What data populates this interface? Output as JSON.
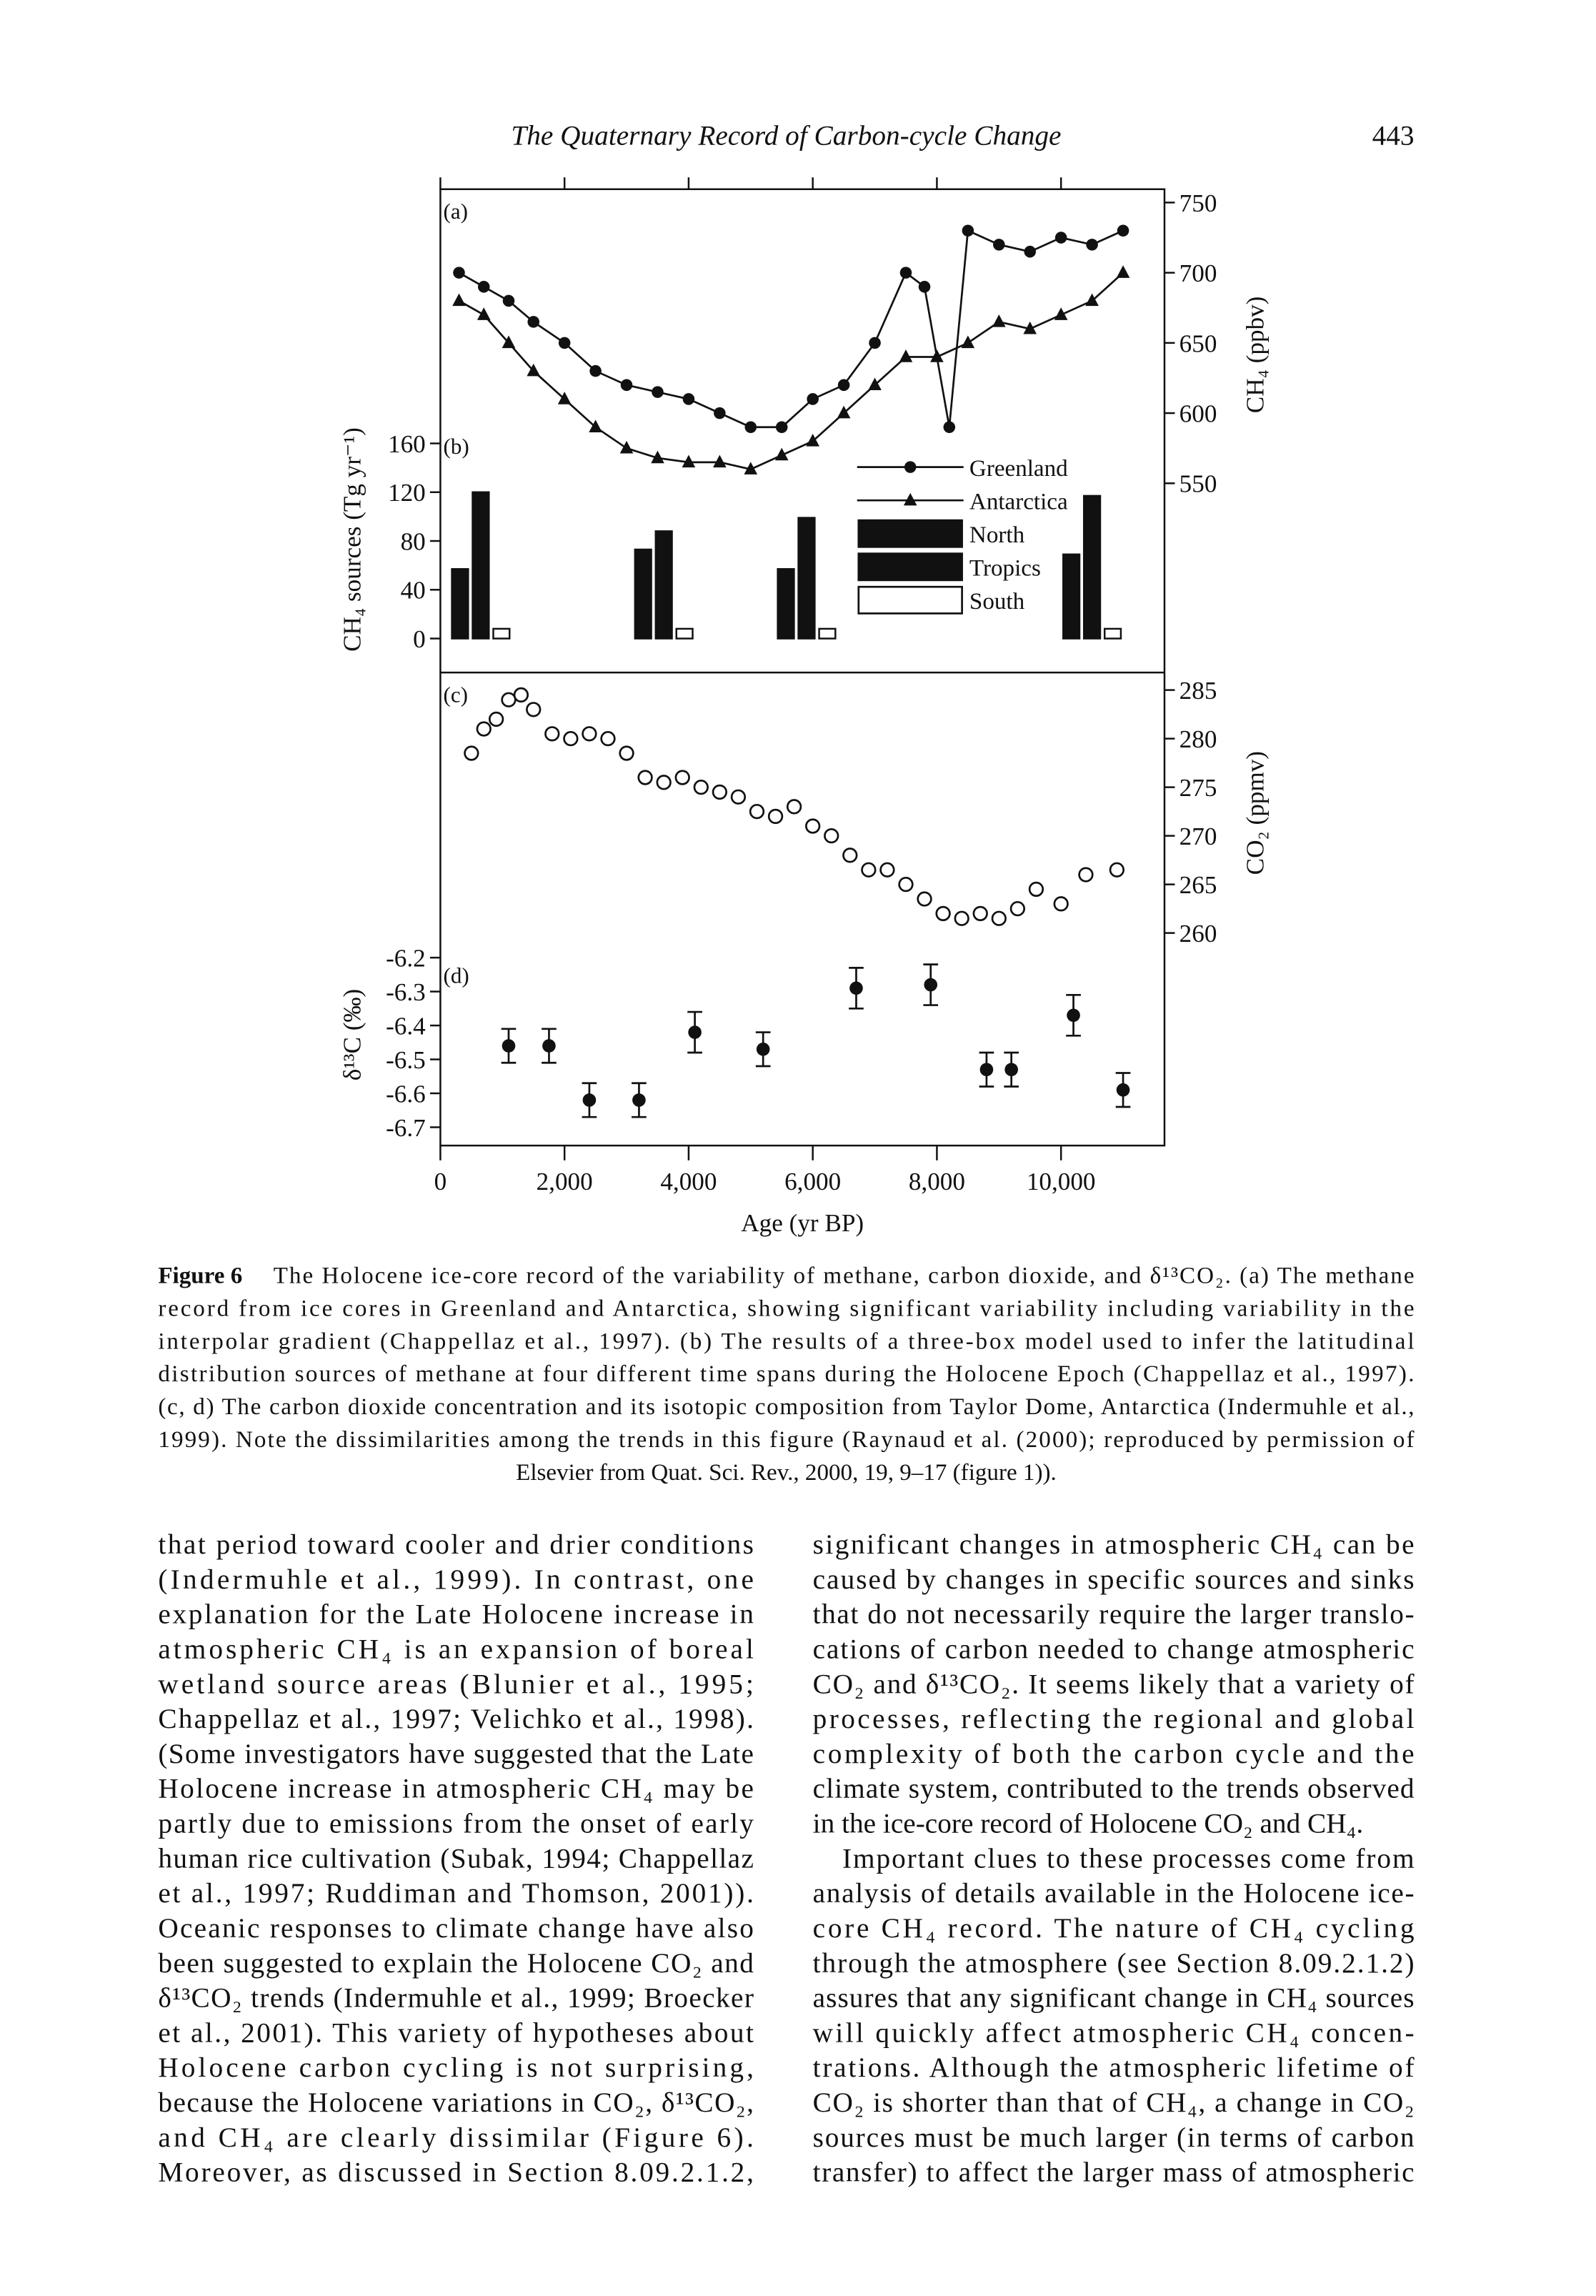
{
  "header": {
    "title": "The Quaternary Record of Carbon-cycle Change",
    "page": "443"
  },
  "chart_data": [
    {
      "type": "line",
      "label": "(a)",
      "y2label": "CH₄ (ppbv)",
      "xlim": [
        0,
        11667
      ],
      "y2lim": [
        546.8,
        759.5
      ],
      "y2ticks": [
        550,
        600,
        650,
        700,
        750
      ],
      "series": [
        {
          "name": "Greenland",
          "color": "#111111",
          "marker": "circle",
          "axis": "y2",
          "x": [
            300,
            700,
            1100,
            1500,
            2000,
            2500,
            3000,
            3500,
            4000,
            4500,
            5000,
            5500,
            6000,
            6500,
            7000,
            7500,
            7800,
            8200,
            8500,
            9000,
            9500,
            10000,
            10500,
            11000
          ],
          "values": [
            700,
            690,
            680,
            665,
            650,
            630,
            620,
            615,
            610,
            600,
            590,
            590,
            610,
            620,
            650,
            700,
            690,
            590,
            730,
            720,
            715,
            725,
            720,
            730
          ]
        },
        {
          "name": "Antarctica",
          "color": "#111111",
          "marker": "triangle",
          "axis": "y2",
          "x": [
            300,
            700,
            1100,
            1500,
            2000,
            2500,
            3000,
            3500,
            4000,
            4500,
            5000,
            5500,
            6000,
            6500,
            7000,
            7500,
            8000,
            8500,
            9000,
            9500,
            10000,
            10500,
            11000
          ],
          "values": [
            680,
            670,
            650,
            630,
            610,
            590,
            575,
            568,
            565,
            565,
            560,
            570,
            580,
            600,
            620,
            640,
            640,
            650,
            665,
            660,
            670,
            680,
            700
          ]
        }
      ]
    },
    {
      "type": "bar",
      "label": "(b)",
      "ylabel": "CH₄ sources (Tg yr⁻¹)",
      "xlim": [
        0,
        11667
      ],
      "ylim": [
        -27.9,
        172.1
      ],
      "yticks": [
        0,
        40,
        80,
        120,
        160
      ],
      "categories": [
        null,
        null,
        null,
        null
      ],
      "x": [
        650,
        3600,
        5900,
        10500
      ],
      "series": [
        {
          "name": "North",
          "color": "#111111",
          "values": [
            57,
            73,
            57,
            69
          ]
        },
        {
          "name": "Tropics",
          "color": "#111111",
          "values": [
            120,
            88,
            99,
            117
          ]
        },
        {
          "name": "South",
          "color": "#ffffff",
          "values": [
            8,
            8,
            8,
            8
          ]
        }
      ]
    },
    {
      "type": "scatter",
      "label": "(c)",
      "y2label": "CO₂ (ppmv)",
      "xlim": [
        0,
        11667
      ],
      "y2lim": [
        257.9,
        286.8
      ],
      "y2ticks": [
        260,
        265,
        270,
        275,
        280,
        285
      ],
      "x": [
        500,
        700,
        900,
        1100,
        1300,
        1500,
        1800,
        2100,
        2400,
        2700,
        3000,
        3300,
        3600,
        3900,
        4200,
        4500,
        4800,
        5100,
        5400,
        5700,
        6000,
        6300,
        6600,
        6900,
        7200,
        7500,
        7800,
        8100,
        8400,
        8700,
        9000,
        9300,
        9600,
        10000,
        10400,
        10900
      ],
      "values": [
        278.5,
        281,
        282,
        284,
        284.5,
        283,
        280.5,
        280,
        280.5,
        280,
        278.5,
        276,
        275.5,
        276,
        275,
        274.5,
        274,
        272.5,
        272,
        273,
        271,
        270,
        268,
        266.5,
        266.5,
        265,
        263.5,
        262,
        261.5,
        262,
        261.5,
        262.5,
        264.5,
        263,
        266,
        266.5
      ]
    },
    {
      "type": "errorbar",
      "label": "(d)",
      "ylabel": "δ¹³C (‰)",
      "xlabel": "Age (yr BP)",
      "xlim": [
        0,
        11667
      ],
      "ylim": [
        -6.754,
        -6.1875
      ],
      "yticks": [
        -6.2,
        -6.3,
        -6.4,
        -6.5,
        -6.6,
        -6.7
      ],
      "xticks": [
        0,
        {
          "value": 2000,
          "label": "2,000"
        },
        {
          "value": 4000,
          "label": "4,000"
        },
        {
          "value": 6000,
          "label": "6,000"
        },
        {
          "value": 8000,
          "label": "8,000"
        },
        {
          "value": 10000,
          "label": "10,000"
        }
      ],
      "x": [
        1100,
        1750,
        2400,
        3200,
        4100,
        5200,
        6700,
        7900,
        8800,
        9200,
        10200,
        11000
      ],
      "values": [
        -6.46,
        -6.46,
        -6.62,
        -6.62,
        -6.42,
        -6.47,
        -6.29,
        -6.28,
        -6.53,
        -6.53,
        -6.37,
        -6.59
      ],
      "errors": [
        0.05,
        0.05,
        0.05,
        0.05,
        0.06,
        0.05,
        0.06,
        0.06,
        0.05,
        0.05,
        0.06,
        0.05
      ]
    }
  ],
  "caption": {
    "label": "Figure 6",
    "lines": [
      "The Holocene ice-core record of the variability of methane, carbon dioxide, and δ¹³CO₂. (a) The methane",
      "record from ice cores in Greenland and Antarctica, showing significant variability including variability in the",
      "interpolar gradient (Chappellaz et al., 1997). (b) The results of a three-box model used to infer the latitudinal",
      "distribution sources of methane at four different time spans during the Holocene Epoch (Chappellaz et al., 1997).",
      "(c, d) The carbon dioxide concentration and its isotopic composition from Taylor Dome, Antarctica (Indermuhle et al.,",
      "1999). Note the dissimilarities among the trends in this figure (Raynaud et al. (2000); reproduced by permission of",
      "Elsevier from Quat. Sci. Rev., 2000, 19, 9–17 (figure 1))."
    ]
  },
  "body": {
    "left": [
      [
        "that period toward cooler and drier conditions",
        "(Indermuhle et al., 1999). In contrast, one",
        "explanation for the Late Holocene increase in",
        "atmospheric CH₄ is an expansion of boreal",
        "wetland source areas (Blunier et al., 1995;",
        "Chappellaz et al., 1997; Velichko et al., 1998).",
        "(Some investigators have suggested that the Late",
        "Holocene increase in atmospheric CH₄ may be",
        "partly due to emissions from the onset of early",
        "human rice cultivation (Subak, 1994; Chappellaz",
        "et al., 1997; Ruddiman and Thomson, 2001)).",
        "Oceanic responses to climate change have also",
        "been suggested to explain the Holocene CO₂ and",
        "δ¹³CO₂ trends (Indermuhle et al., 1999; Broecker",
        "et al., 2001). This variety of hypotheses about",
        "Holocene carbon cycling is not surprising,",
        "because the Holocene variations in CO₂, δ¹³CO₂,",
        "and CH₄ are clearly dissimilar (Figure 6).",
        "Moreover, as discussed in Section 8.09.2.1.2,"
      ]
    ],
    "right": [
      [
        "significant changes in atmospheric CH₄ can be",
        "caused by changes in specific sources and sinks",
        "that do not necessarily require the larger translo-",
        "cations of carbon needed to change atmospheric",
        "CO₂ and δ¹³CO₂. It seems likely that a variety of",
        "processes, reflecting the regional and global",
        "complexity of both the carbon cycle and the",
        "climate system, contributed to the trends observed",
        "in the ice-core record of Holocene CO₂ and CH₄."
      ],
      [
        "Important clues to these processes come from",
        "analysis of details available in the Holocene ice-",
        "core CH₄ record. The nature of CH₄ cycling",
        "through the atmosphere (see Section 8.09.2.1.2)",
        "assures that any significant change in CH₄ sources",
        "will quickly affect atmospheric CH₄ concen-",
        "trations. Although the atmospheric lifetime of",
        "CO₂ is shorter than that of CH₄, a change in CO₂",
        "sources must be much larger (in terms of carbon",
        "transfer) to affect the larger mass of atmospheric"
      ]
    ]
  }
}
